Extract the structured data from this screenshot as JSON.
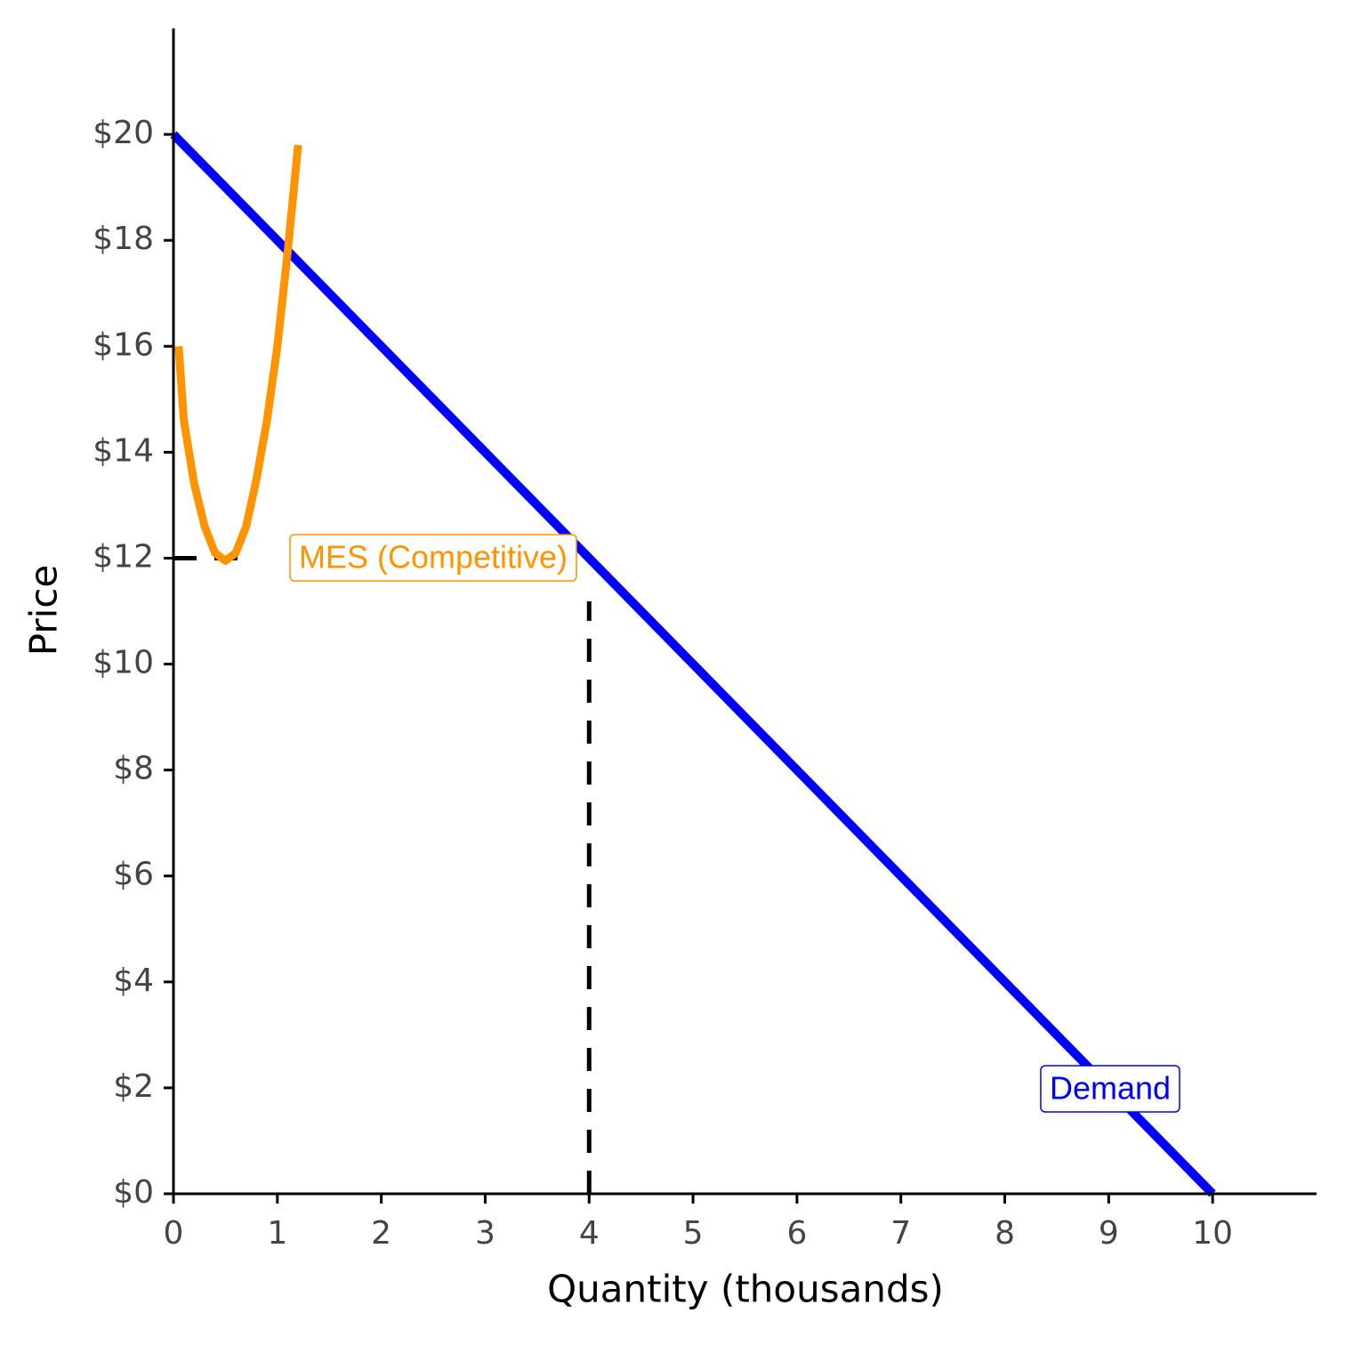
{
  "chart_data": {
    "type": "line",
    "x_label": "Quantity (thousands)",
    "y_label": "Price",
    "xlim": [
      0,
      11
    ],
    "ylim": [
      0,
      22
    ],
    "xticks": [
      0,
      1,
      2,
      3,
      4,
      5,
      6,
      7,
      8,
      9,
      10
    ],
    "yticks": [
      {
        "value": 0,
        "label": "$0"
      },
      {
        "value": 2,
        "label": "$2"
      },
      {
        "value": 4,
        "label": "$4"
      },
      {
        "value": 6,
        "label": "$6"
      },
      {
        "value": 8,
        "label": "$8"
      },
      {
        "value": 10,
        "label": "$10"
      },
      {
        "value": 12,
        "label": "$12"
      },
      {
        "value": 14,
        "label": "$14"
      },
      {
        "value": 16,
        "label": "$16"
      },
      {
        "value": 18,
        "label": "$18"
      },
      {
        "value": 20,
        "label": "$20"
      }
    ],
    "series": [
      {
        "name": "Demand",
        "color": "#0000ff",
        "x": [
          0,
          10
        ],
        "values": [
          20,
          0
        ]
      },
      {
        "color": "#ff9300",
        "x": [
          0.05,
          0.1,
          0.2,
          0.3,
          0.4,
          0.5,
          0.6,
          0.7,
          0.8,
          0.9,
          1.0,
          1.1,
          1.2
        ],
        "values": [
          16,
          14.6,
          13.4,
          12.6,
          12.1,
          11.95,
          12.1,
          12.6,
          13.5,
          14.6,
          16,
          17.8,
          19.8
        ]
      }
    ],
    "reference_lines": [
      {
        "orientation": "h",
        "value": 12
      },
      {
        "orientation": "v",
        "value": 4
      }
    ],
    "annotations": [
      {
        "text": "MES (Competitive)",
        "color": "#ff9300"
      }
    ]
  }
}
